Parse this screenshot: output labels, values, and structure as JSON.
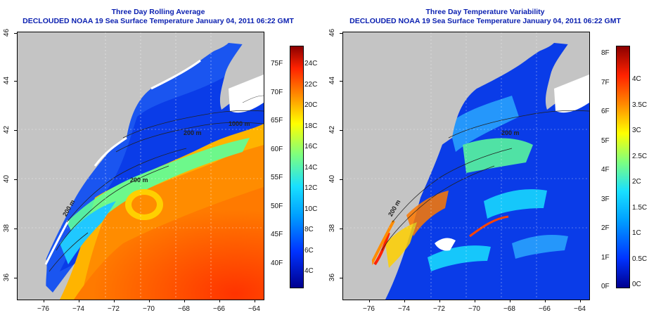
{
  "left_panel": {
    "title_line1": "Three Day Rolling Average",
    "title_line2": "DECLOUDED NOAA 19 Sea Surface Temperature January 04, 2011 06:22 GMT",
    "colorbar_f": [
      "75F",
      "70F",
      "65F",
      "60F",
      "55F",
      "50F",
      "45F",
      "40F"
    ],
    "colorbar_c": [
      "24C",
      "22C",
      "20C",
      "18C",
      "16C",
      "14C",
      "12C",
      "10C",
      "8C",
      "6C",
      "4C"
    ],
    "contour_labels": [
      "200 m",
      "200 m",
      "1000 m",
      "200 m"
    ]
  },
  "right_panel": {
    "title_line1": "Three Day Temperature Variability",
    "title_line2": "DECLOUDED NOAA 19 Sea Surface Temperature January 04, 2011 06:22 GMT",
    "colorbar_f": [
      "8F",
      "7F",
      "6F",
      "5F",
      "4F",
      "3F",
      "2F",
      "1F",
      "0F"
    ],
    "colorbar_c": [
      "4C",
      "3.5C",
      "3C",
      "2.5C",
      "2C",
      "1.5C",
      "1C",
      "0.5C",
      "0C"
    ],
    "contour_labels": [
      "200 m",
      "200 m"
    ]
  },
  "x_ticks": [
    "−76",
    "−74",
    "−72",
    "−70",
    "−68",
    "−66",
    "−64"
  ],
  "y_ticks": [
    "46",
    "44",
    "42",
    "40",
    "38",
    "36"
  ],
  "colors": {
    "title": "#0a1fb0",
    "land": "#c4c4c4",
    "cold": "#0033ff",
    "warm": "#ff3300"
  }
}
